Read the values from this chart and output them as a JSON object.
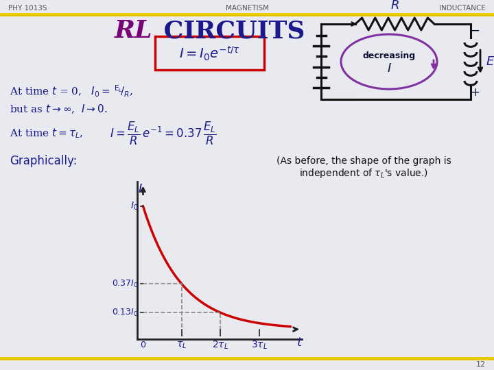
{
  "bg_color": "#e8eaf0",
  "header_bar_color": "#e8c800",
  "top_left_text": "PHY 1013S",
  "top_center_text": "MAGNETISM",
  "top_right_text": "INDUCTANCE",
  "page_number": "12",
  "title_RL": "RL",
  "title_rest": " CIRCUITS",
  "title_purple": "#7a0077",
  "title_dark": "#1a1a8c",
  "formula_box_color": "#cc0000",
  "formula_bg": "#e8eaf0",
  "graph_curve_color": "#cc0000",
  "graph_dashed_color": "#888888",
  "text_color": "#1a1a8c",
  "header_text_color": "#555555",
  "circuit_color": "#111111",
  "circle_color": "#8030a0",
  "annot_color": "#111111"
}
